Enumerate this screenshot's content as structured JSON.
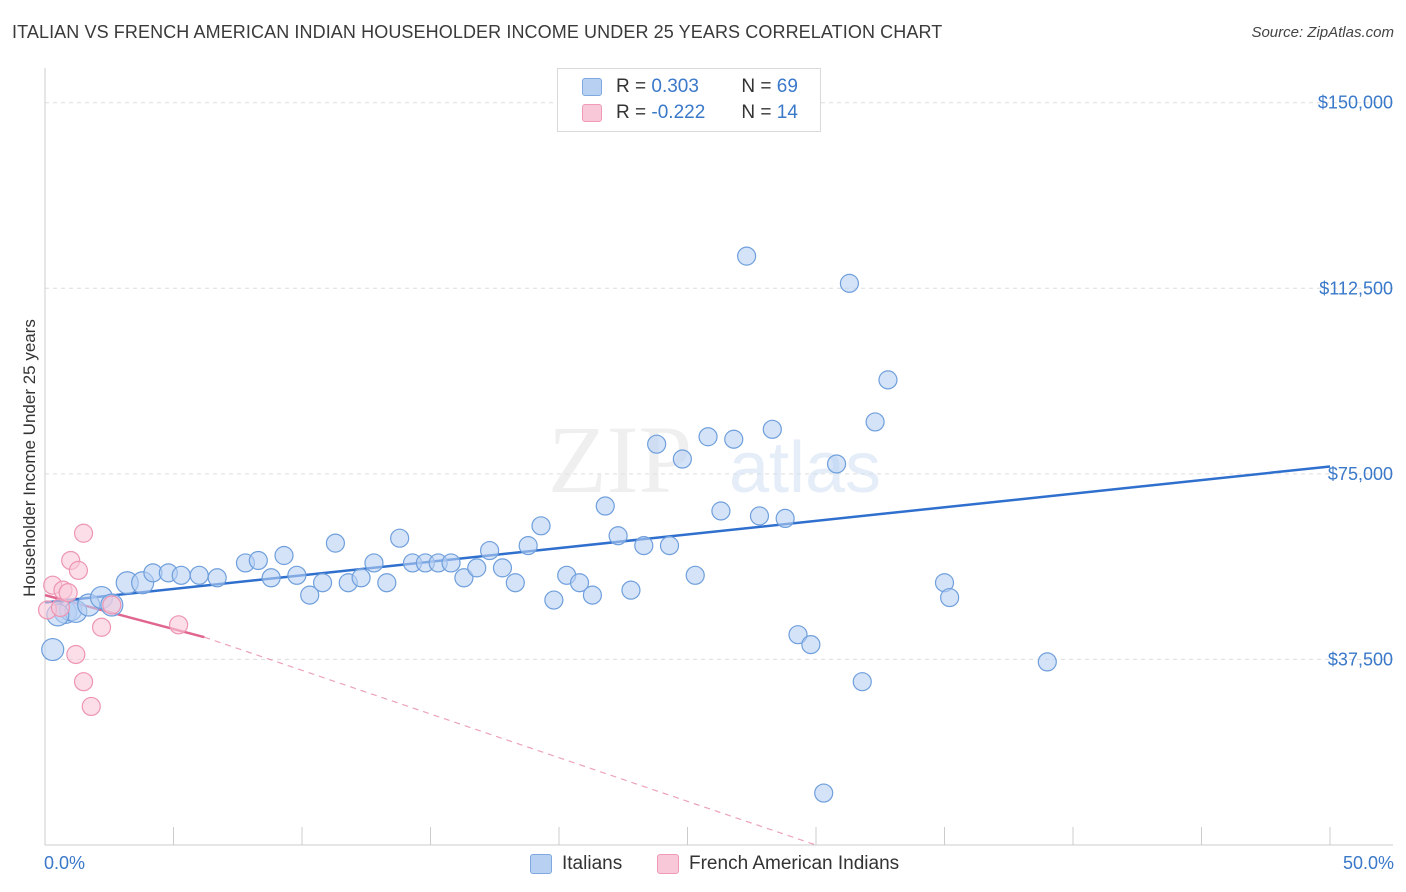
{
  "title": "ITALIAN VS FRENCH AMERICAN INDIAN HOUSEHOLDER INCOME UNDER 25 YEARS CORRELATION CHART",
  "source": "Source: ZipAtlas.com",
  "watermark": {
    "zip": "ZIP",
    "atlas": "atlas"
  },
  "legend": {
    "italians": {
      "r_label": "R =",
      "r_value": "0.303",
      "n_label": "N =",
      "n_value": "69"
    },
    "french": {
      "r_label": "R =",
      "r_value": "-0.222",
      "n_label": "N =",
      "n_value": "14"
    }
  },
  "colors": {
    "italians_fill": "#b8d1f3",
    "italians_stroke": "#6f9fdc",
    "italians_line": "#2f6fce",
    "french_fill": "#f8c8d8",
    "french_stroke": "#ee95b2",
    "french_line": "#e0668f",
    "tick_label": "#3a78c9",
    "grid": "#dddddd"
  },
  "chart_data": {
    "type": "scatter",
    "title": "ITALIAN VS FRENCH AMERICAN INDIAN HOUSEHOLDER INCOME UNDER 25 YEARS CORRELATION CHART",
    "xlabel": "",
    "ylabel": "Householder Income Under 25 years",
    "xlim": [
      0,
      50
    ],
    "ylim": [
      0,
      155000
    ],
    "x_tick_labels": [
      "0.0%",
      "50.0%"
    ],
    "y_ticks": [
      37500,
      75000,
      112500,
      150000
    ],
    "y_tick_labels": [
      "$37,500",
      "$75,000",
      "$112,500",
      "$150,000"
    ],
    "grid": "horizontal dashed",
    "legend_position": "top-center",
    "series": [
      {
        "name": "Italians",
        "points": [
          [
            0.3,
            39500
          ],
          [
            0.8,
            47000
          ],
          [
            1.0,
            47500
          ],
          [
            1.2,
            47200
          ],
          [
            1.7,
            48500
          ],
          [
            2.2,
            50000
          ],
          [
            2.6,
            48500
          ],
          [
            3.2,
            53000
          ],
          [
            3.8,
            53000
          ],
          [
            4.2,
            55000
          ],
          [
            4.8,
            55000
          ],
          [
            5.3,
            54500
          ],
          [
            6.0,
            54500
          ],
          [
            6.7,
            54000
          ],
          [
            7.8,
            57000
          ],
          [
            8.3,
            57500
          ],
          [
            8.8,
            54000
          ],
          [
            9.3,
            58500
          ],
          [
            9.8,
            54500
          ],
          [
            10.3,
            50500
          ],
          [
            10.8,
            53000
          ],
          [
            11.3,
            61000
          ],
          [
            11.8,
            53000
          ],
          [
            12.3,
            54000
          ],
          [
            12.8,
            57000
          ],
          [
            13.3,
            53000
          ],
          [
            13.8,
            62000
          ],
          [
            14.3,
            57000
          ],
          [
            14.8,
            57000
          ],
          [
            15.3,
            57000
          ],
          [
            15.8,
            57000
          ],
          [
            16.3,
            54000
          ],
          [
            16.8,
            56000
          ],
          [
            17.3,
            59500
          ],
          [
            17.8,
            56000
          ],
          [
            18.3,
            53000
          ],
          [
            18.8,
            60500
          ],
          [
            19.3,
            64500
          ],
          [
            19.8,
            49500
          ],
          [
            20.3,
            54500
          ],
          [
            20.8,
            53000
          ],
          [
            21.3,
            50500
          ],
          [
            21.8,
            68500
          ],
          [
            22.3,
            62500
          ],
          [
            22.8,
            51500
          ],
          [
            23.3,
            60500
          ],
          [
            23.8,
            81000
          ],
          [
            24.3,
            60500
          ],
          [
            24.8,
            78000
          ],
          [
            25.3,
            54500
          ],
          [
            25.8,
            82500
          ],
          [
            26.3,
            67500
          ],
          [
            26.8,
            82000
          ],
          [
            27.3,
            119000
          ],
          [
            27.8,
            66500
          ],
          [
            28.3,
            84000
          ],
          [
            28.8,
            66000
          ],
          [
            29.3,
            42500
          ],
          [
            29.8,
            40500
          ],
          [
            30.3,
            10500
          ],
          [
            30.8,
            77000
          ],
          [
            31.3,
            113500
          ],
          [
            31.8,
            33000
          ],
          [
            32.3,
            85500
          ],
          [
            32.8,
            94000
          ],
          [
            35.0,
            53000
          ],
          [
            35.2,
            50000
          ],
          [
            39.0,
            37000
          ],
          [
            0.5,
            46500
          ]
        ],
        "trend": {
          "x": [
            0,
            50
          ],
          "y": [
            49000,
            76500
          ]
        }
      },
      {
        "name": "French American Indians",
        "points": [
          [
            0.1,
            47500
          ],
          [
            0.3,
            52500
          ],
          [
            0.6,
            48000
          ],
          [
            0.7,
            51500
          ],
          [
            0.9,
            51000
          ],
          [
            1.0,
            57500
          ],
          [
            1.2,
            38500
          ],
          [
            1.3,
            55500
          ],
          [
            1.5,
            63000
          ],
          [
            1.5,
            33000
          ],
          [
            1.8,
            28000
          ],
          [
            2.2,
            44000
          ],
          [
            2.6,
            48500
          ],
          [
            5.2,
            44500
          ]
        ],
        "trend": {
          "x": [
            0,
            6.2
          ],
          "y": [
            50500,
            42000
          ]
        },
        "trend_extended": {
          "x": [
            6.2,
            30.0
          ],
          "y": [
            42000,
            0
          ]
        }
      }
    ]
  }
}
